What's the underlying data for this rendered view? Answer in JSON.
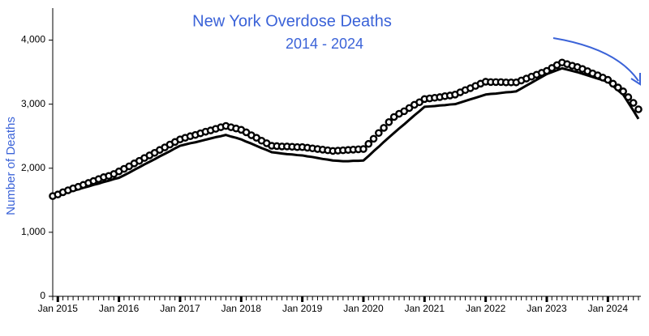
{
  "chart_data": {
    "type": "line",
    "title": "New York Overdose Deaths",
    "subtitle": "2014 - 2024",
    "y_label": "Number of Deaths",
    "x": [
      "2014-12",
      "2015-01",
      "2015-02",
      "2015-03",
      "2015-04",
      "2015-05",
      "2015-06",
      "2015-07",
      "2015-08",
      "2015-09",
      "2015-10",
      "2015-11",
      "2015-12",
      "2016-01",
      "2016-02",
      "2016-03",
      "2016-04",
      "2016-05",
      "2016-06",
      "2016-07",
      "2016-08",
      "2016-09",
      "2016-10",
      "2016-11",
      "2016-12",
      "2017-01",
      "2017-02",
      "2017-03",
      "2017-04",
      "2017-05",
      "2017-06",
      "2017-07",
      "2017-08",
      "2017-09",
      "2017-10",
      "2017-11",
      "2017-12",
      "2018-01",
      "2018-02",
      "2018-03",
      "2018-04",
      "2018-05",
      "2018-06",
      "2018-07",
      "2018-08",
      "2018-09",
      "2018-10",
      "2018-11",
      "2018-12",
      "2019-01",
      "2019-02",
      "2019-03",
      "2019-04",
      "2019-05",
      "2019-06",
      "2019-07",
      "2019-08",
      "2019-09",
      "2019-10",
      "2019-11",
      "2019-12",
      "2020-01",
      "2020-02",
      "2020-03",
      "2020-04",
      "2020-05",
      "2020-06",
      "2020-07",
      "2020-08",
      "2020-09",
      "2020-10",
      "2020-11",
      "2020-12",
      "2021-01",
      "2021-02",
      "2021-03",
      "2021-04",
      "2021-05",
      "2021-06",
      "2021-07",
      "2021-08",
      "2021-09",
      "2021-10",
      "2021-11",
      "2021-12",
      "2022-01",
      "2022-02",
      "2022-03",
      "2022-04",
      "2022-05",
      "2022-06",
      "2022-07",
      "2022-08",
      "2022-09",
      "2022-10",
      "2022-11",
      "2022-12",
      "2023-01",
      "2023-02",
      "2023-03",
      "2023-04",
      "2023-05",
      "2023-06",
      "2023-07",
      "2023-08",
      "2023-09",
      "2023-10",
      "2023-11",
      "2023-12",
      "2024-01",
      "2024-02",
      "2024-03",
      "2024-04",
      "2024-05",
      "2024-06",
      "2024-07"
    ],
    "series": [
      {
        "mode": "line",
        "color": "#000000",
        "values": [
          1560,
          1580,
          1605,
          1625,
          1650,
          1670,
          1695,
          1715,
          1740,
          1760,
          1785,
          1805,
          1830,
          1850,
          1890,
          1930,
          1975,
          2015,
          2060,
          2100,
          2140,
          2185,
          2225,
          2265,
          2310,
          2350,
          2370,
          2390,
          2405,
          2425,
          2445,
          2465,
          2485,
          2500,
          2520,
          2495,
          2475,
          2450,
          2415,
          2385,
          2350,
          2315,
          2285,
          2250,
          2240,
          2230,
          2220,
          2215,
          2205,
          2200,
          2185,
          2175,
          2160,
          2145,
          2135,
          2120,
          2115,
          2110,
          2110,
          2115,
          2115,
          2120,
          2190,
          2265,
          2335,
          2410,
          2480,
          2550,
          2620,
          2685,
          2755,
          2825,
          2890,
          2960,
          2965,
          2970,
          2980,
          2985,
          2995,
          3000,
          3025,
          3050,
          3075,
          3100,
          3125,
          3150,
          3160,
          3165,
          3175,
          3185,
          3190,
          3200,
          3245,
          3290,
          3335,
          3380,
          3425,
          3470,
          3500,
          3530,
          3560,
          3540,
          3520,
          3500,
          3475,
          3450,
          3425,
          3400,
          3375,
          3350,
          3285,
          3215,
          3150,
          3025,
          2900,
          2770
        ]
      },
      {
        "mode": "markers",
        "color": "#000000",
        "values": [
          1565,
          1590,
          1625,
          1655,
          1685,
          1710,
          1740,
          1770,
          1800,
          1830,
          1860,
          1880,
          1910,
          1950,
          1990,
          2030,
          2075,
          2115,
          2160,
          2200,
          2240,
          2285,
          2325,
          2370,
          2410,
          2450,
          2475,
          2500,
          2520,
          2545,
          2570,
          2590,
          2615,
          2640,
          2660,
          2640,
          2620,
          2600,
          2560,
          2515,
          2475,
          2430,
          2390,
          2350,
          2345,
          2340,
          2340,
          2335,
          2330,
          2330,
          2320,
          2310,
          2300,
          2290,
          2280,
          2270,
          2275,
          2280,
          2285,
          2290,
          2295,
          2300,
          2380,
          2460,
          2550,
          2630,
          2720,
          2800,
          2850,
          2890,
          2940,
          2990,
          3030,
          3080,
          3090,
          3100,
          3110,
          3125,
          3135,
          3150,
          3185,
          3220,
          3250,
          3285,
          3320,
          3350,
          3345,
          3345,
          3345,
          3340,
          3340,
          3340,
          3370,
          3400,
          3430,
          3460,
          3490,
          3520,
          3565,
          3610,
          3650,
          3625,
          3600,
          3580,
          3550,
          3515,
          3480,
          3450,
          3415,
          3380,
          3320,
          3260,
          3200,
          3110,
          3020,
          2920
        ]
      }
    ],
    "xlim": [
      "2014-12",
      "2024-07"
    ],
    "xticks": [
      {
        "value": "2015-01",
        "label": "Jan 2015"
      },
      {
        "value": "2016-01",
        "label": "Jan 2016"
      },
      {
        "value": "2017-01",
        "label": "Jan 2017"
      },
      {
        "value": "2018-01",
        "label": "Jan 2018"
      },
      {
        "value": "2019-01",
        "label": "Jan 2019"
      },
      {
        "value": "2020-01",
        "label": "Jan 2020"
      },
      {
        "value": "2021-01",
        "label": "Jan 2021"
      },
      {
        "value": "2022-01",
        "label": "Jan 2022"
      },
      {
        "value": "2023-01",
        "label": "Jan 2023"
      },
      {
        "value": "2024-01",
        "label": "Jan 2024"
      }
    ],
    "ylim": [
      0,
      4500
    ],
    "yticks": [
      0,
      {
        "value": 1000,
        "label": "1,000"
      },
      {
        "value": 2000,
        "label": "2,000"
      },
      {
        "value": 3000,
        "label": "3,000"
      },
      {
        "value": 4000,
        "label": "4,000"
      }
    ],
    "grid": false
  }
}
